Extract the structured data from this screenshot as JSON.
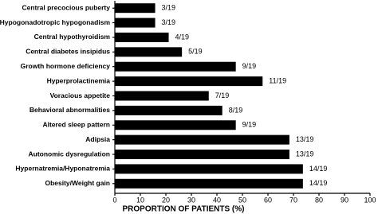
{
  "chart_data": {
    "type": "hbar",
    "categories": [
      "Central precocious puberty",
      "Hypogonadotropic hypogonadism",
      "Central hypothyroidism",
      "Central diabetes insipidus",
      "Growth hormone deficiency",
      "Hyperprolactinemia",
      "Voracious appetite",
      "Behavioral abnormalities",
      "Altered sleep pattern",
      "Adipsia",
      "Autonomic dysregulation",
      "Hypernatremia/Hyponatremia",
      "Obesity/Weight gain"
    ],
    "values": [
      15.8,
      15.8,
      21.1,
      26.3,
      47.4,
      57.9,
      36.8,
      42.1,
      47.4,
      68.4,
      68.4,
      73.7,
      73.7
    ],
    "value_labels": [
      "3/19",
      "3/19",
      "4/19",
      "5/19",
      "9/19",
      "11/19",
      "7/19",
      "8/19",
      "9/19",
      "13/19",
      "13/19",
      "14/19",
      "14/19"
    ],
    "color": "#000000",
    "xlabel": "PROPORTION OF PATIENTS (%)",
    "xlim": [
      0,
      100
    ],
    "xticks": [
      0,
      10,
      20,
      30,
      40,
      50,
      60,
      70,
      80,
      90,
      100
    ]
  }
}
